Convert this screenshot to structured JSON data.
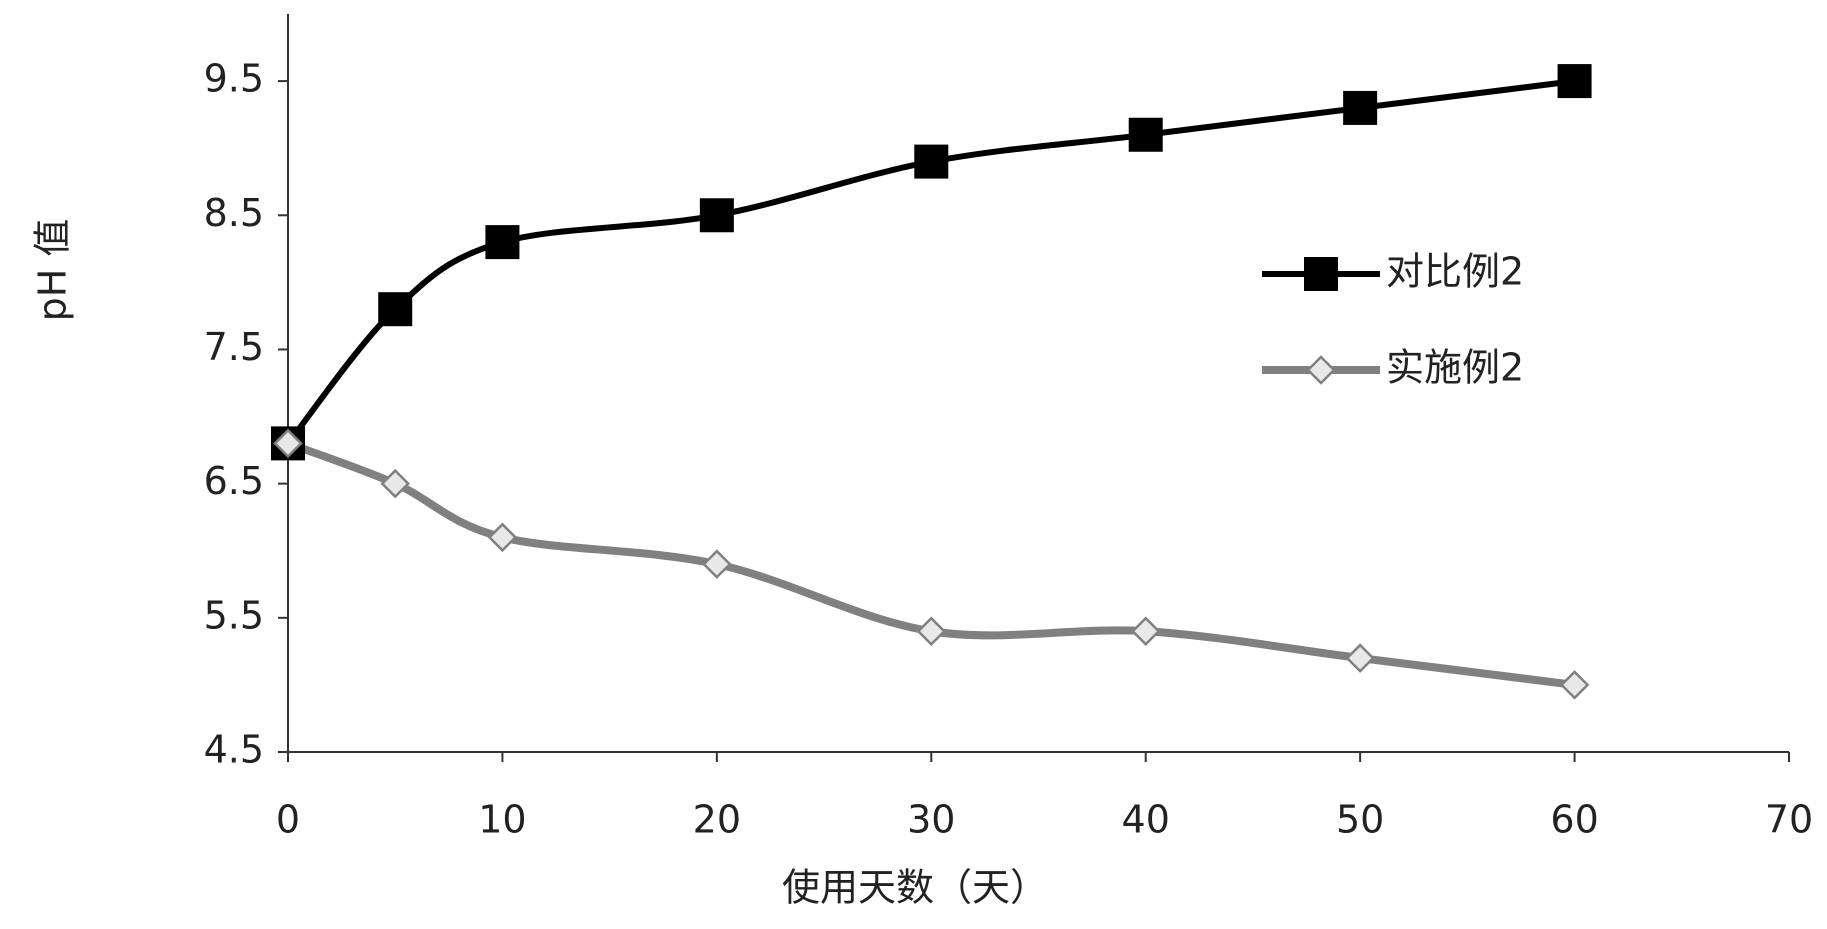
{
  "chart_data": {
    "type": "line",
    "x_label": "使用天数（天）",
    "y_label": "pH 值",
    "x": [
      0,
      5,
      10,
      20,
      30,
      40,
      50,
      60
    ],
    "series": [
      {
        "name": "对比例2",
        "color": "#000000",
        "marker": "square",
        "values": [
          6.8,
          7.8,
          8.3,
          8.5,
          8.9,
          9.1,
          9.3,
          9.5
        ]
      },
      {
        "name": "实施例2",
        "color": "#808080",
        "marker": "diamond",
        "values": [
          6.8,
          6.5,
          6.1,
          5.9,
          5.4,
          5.4,
          5.2,
          5.0
        ]
      }
    ],
    "xlim": [
      0,
      70
    ],
    "xticks": [
      0,
      10,
      20,
      30,
      40,
      50,
      60,
      70
    ],
    "ylim": [
      4.5,
      10
    ],
    "yticks": [
      4.5,
      5.5,
      6.5,
      7.5,
      8.5,
      9.5
    ],
    "grid": false,
    "legend": "right"
  }
}
